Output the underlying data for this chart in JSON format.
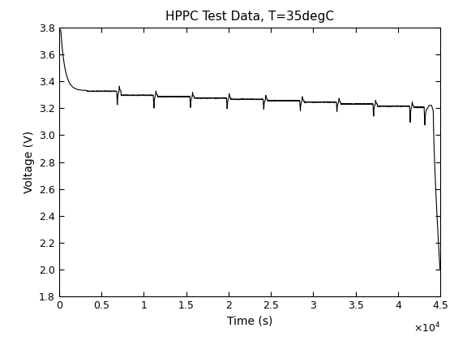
{
  "title": "HPPC Test Data, T=35degC",
  "xlabel": "Time (s)",
  "ylabel": "Voltage (V)",
  "xlim": [
    0,
    45000
  ],
  "ylim": [
    1.8,
    3.8
  ],
  "xticks": [
    0,
    5000,
    10000,
    15000,
    20000,
    25000,
    30000,
    35000,
    40000,
    45000
  ],
  "xtick_labels": [
    "0",
    "0.5",
    "1",
    "1.5",
    "2",
    "2.5",
    "3",
    "3.5",
    "4",
    "4.5"
  ],
  "yticks": [
    1.8,
    2.0,
    2.2,
    2.4,
    2.6,
    2.8,
    3.0,
    3.2,
    3.4,
    3.6,
    3.8
  ],
  "line_color": "#000000",
  "line_width": 0.8,
  "background_color": "#ffffff",
  "title_fontsize": 11,
  "label_fontsize": 10,
  "tick_fontsize": 9
}
